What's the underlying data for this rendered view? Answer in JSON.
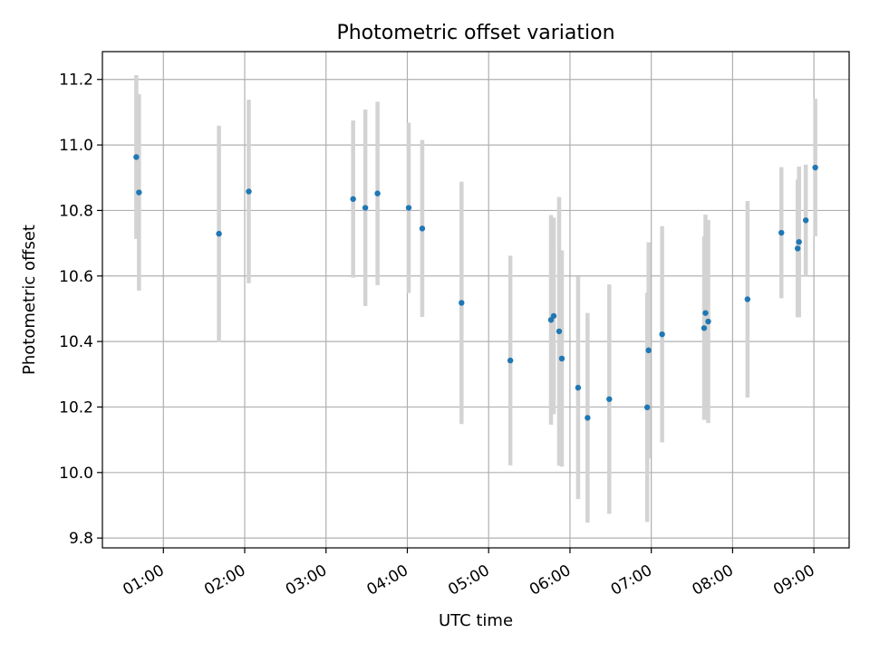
{
  "chart_data": {
    "type": "scatter",
    "title": "Photometric offset variation",
    "xlabel": "UTC time",
    "ylabel": "Photometric offset",
    "x_unit": "UTC time (hh:mm)",
    "xlim": [
      "00:15",
      "09:26"
    ],
    "ylim": [
      9.77,
      11.285
    ],
    "grid": true,
    "legend": "none",
    "colors": {
      "point": "#1f77b4",
      "errorbar": "#d3d3d3",
      "grid": "#b0b0b0"
    },
    "x_ticks": [
      "01:00",
      "02:00",
      "03:00",
      "04:00",
      "05:00",
      "06:00",
      "07:00",
      "08:00",
      "09:00"
    ],
    "y_ticks": [
      "9.8",
      "10.0",
      "10.2",
      "10.4",
      "10.6",
      "10.8",
      "11.0",
      "11.2"
    ],
    "points": [
      {
        "x": "00:40",
        "y": 10.963,
        "err": 0.25
      },
      {
        "x": "00:42",
        "y": 10.855,
        "err": 0.3
      },
      {
        "x": "01:41",
        "y": 10.729,
        "err": 0.33
      },
      {
        "x": "02:03",
        "y": 10.858,
        "err": 0.28
      },
      {
        "x": "03:20",
        "y": 10.835,
        "err": 0.24
      },
      {
        "x": "03:29",
        "y": 10.808,
        "err": 0.3
      },
      {
        "x": "03:38",
        "y": 10.852,
        "err": 0.28
      },
      {
        "x": "04:01",
        "y": 10.808,
        "err": 0.26
      },
      {
        "x": "04:11",
        "y": 10.745,
        "err": 0.27
      },
      {
        "x": "04:40",
        "y": 10.518,
        "err": 0.37
      },
      {
        "x": "05:16",
        "y": 10.342,
        "err": 0.32
      },
      {
        "x": "05:46",
        "y": 10.466,
        "err": 0.32
      },
      {
        "x": "05:48",
        "y": 10.478,
        "err": 0.3
      },
      {
        "x": "05:52",
        "y": 10.431,
        "err": 0.41
      },
      {
        "x": "05:54",
        "y": 10.348,
        "err": 0.33
      },
      {
        "x": "06:06",
        "y": 10.259,
        "err": 0.34
      },
      {
        "x": "06:13",
        "y": 10.167,
        "err": 0.32
      },
      {
        "x": "06:29",
        "y": 10.224,
        "err": 0.35
      },
      {
        "x": "06:57",
        "y": 10.199,
        "err": 0.35
      },
      {
        "x": "06:58",
        "y": 10.373,
        "err": 0.33
      },
      {
        "x": "07:08",
        "y": 10.422,
        "err": 0.33
      },
      {
        "x": "07:39",
        "y": 10.441,
        "err": 0.28
      },
      {
        "x": "07:40",
        "y": 10.487,
        "err": 0.3
      },
      {
        "x": "07:42",
        "y": 10.461,
        "err": 0.31
      },
      {
        "x": "08:11",
        "y": 10.529,
        "err": 0.3
      },
      {
        "x": "08:36",
        "y": 10.732,
        "err": 0.2
      },
      {
        "x": "08:48",
        "y": 10.684,
        "err": 0.21
      },
      {
        "x": "08:49",
        "y": 10.704,
        "err": 0.23
      },
      {
        "x": "08:54",
        "y": 10.77,
        "err": 0.17
      },
      {
        "x": "09:01",
        "y": 10.931,
        "err": 0.21
      }
    ]
  }
}
